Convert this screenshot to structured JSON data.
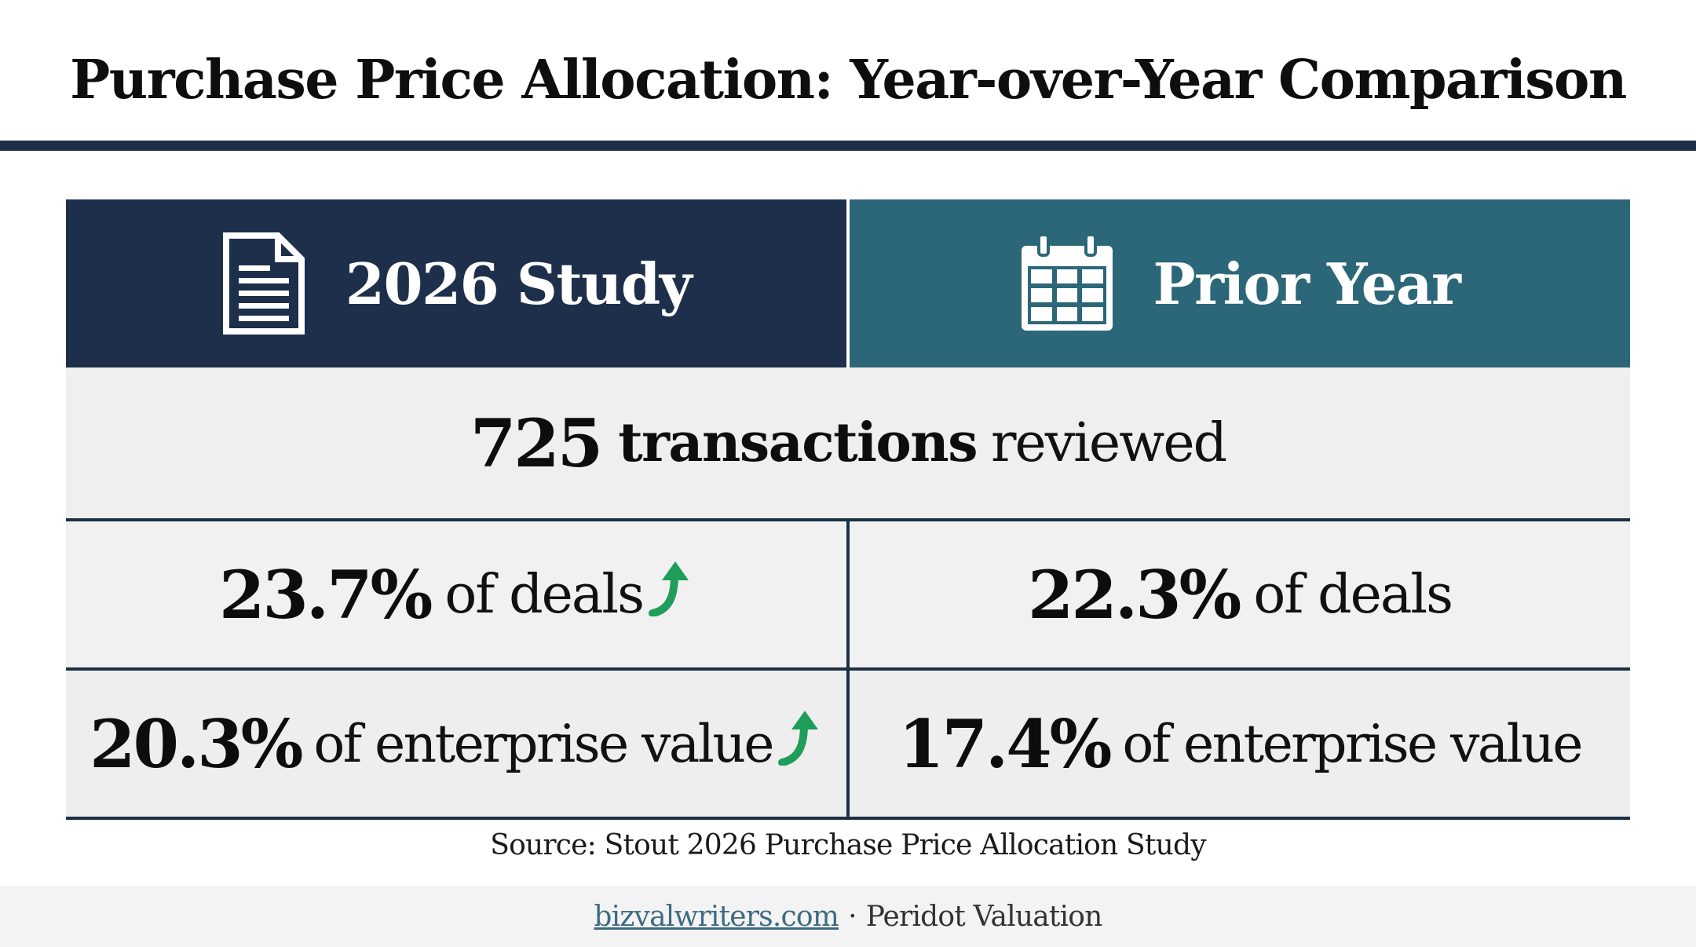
{
  "title": "Purchase Price Allocation: Year-over-Year Comparison",
  "columns": [
    {
      "label": "2026 Study",
      "icon": "document-icon",
      "color": "#1d2f4a"
    },
    {
      "label": "Prior Year",
      "icon": "calendar-icon",
      "color": "#2c6779"
    }
  ],
  "summary": {
    "number": "725",
    "bold_text": "transactions",
    "text": "reviewed"
  },
  "rows": [
    {
      "current": {
        "value": "23.7%",
        "text": "of deals",
        "trend": "up"
      },
      "prior": {
        "value": "22.3%",
        "text": "of deals"
      }
    },
    {
      "current": {
        "value": "20.3%",
        "text": "of enterprise value",
        "trend": "up"
      },
      "prior": {
        "value": "17.4%",
        "text": "of enterprise value"
      }
    }
  ],
  "source": "Source: Stout 2026 Purchase Price Allocation Study",
  "footer": {
    "link": "bizvalwriters.com",
    "separator": "·",
    "company": "Peridot Valuation"
  },
  "colors": {
    "navy": "#1c2f47",
    "teal": "#2c6779",
    "up_arrow": "#1e9e5a"
  }
}
